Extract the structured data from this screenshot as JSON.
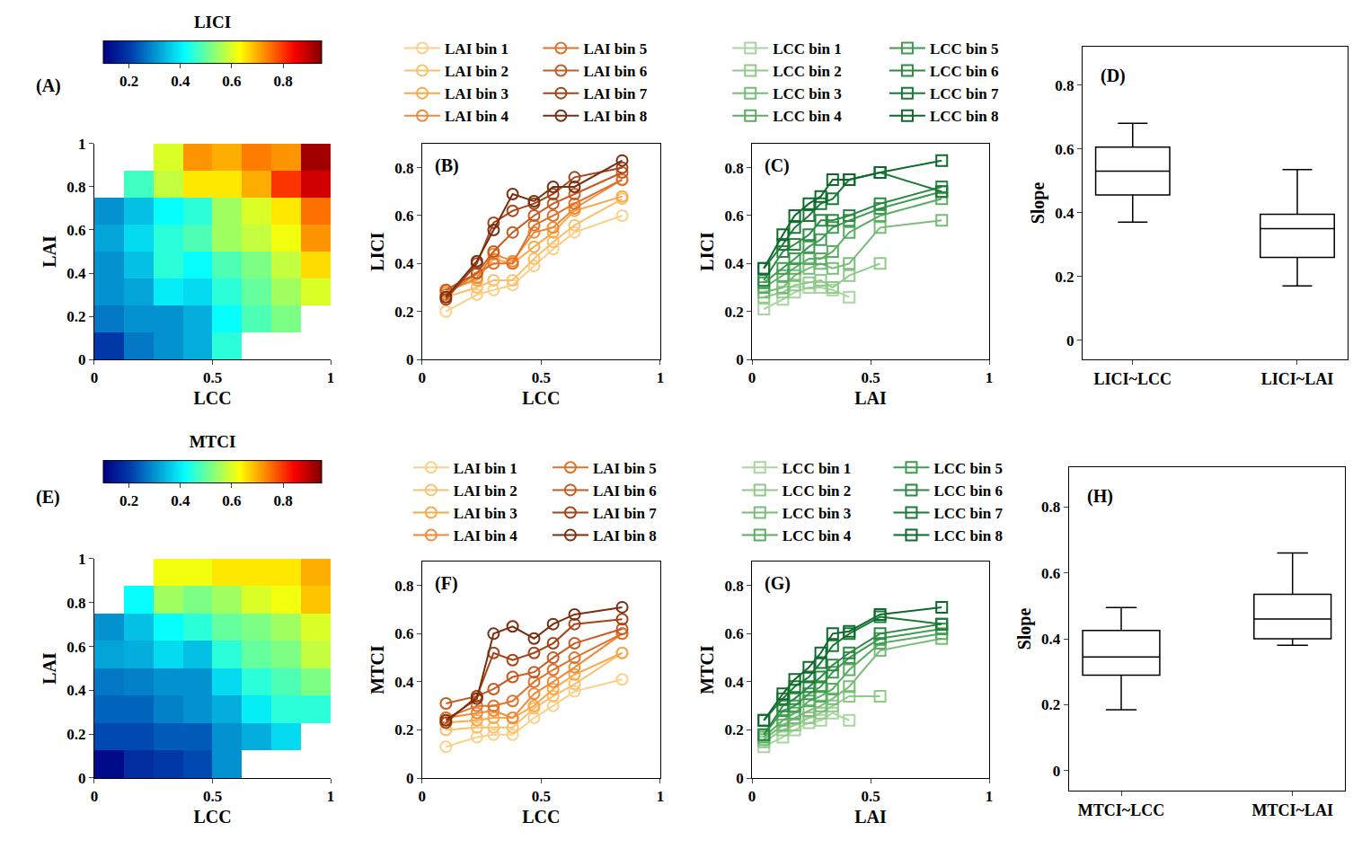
{
  "chart_data": [
    {
      "type": "heatmap",
      "panel": "(A)",
      "xlabel": "LCC",
      "ylabel": "LAI",
      "xlim": [
        0,
        1
      ],
      "ylim": [
        0,
        1
      ],
      "xticks": [
        0,
        0.5,
        1
      ],
      "yticks": [
        0,
        0.2,
        0.4,
        0.6,
        0.8,
        1
      ],
      "x_edges": [
        0,
        0.125,
        0.25,
        0.375,
        0.5,
        0.625,
        0.75,
        0.875,
        1
      ],
      "y_edges": [
        0,
        0.125,
        0.25,
        0.375,
        0.5,
        0.625,
        0.75,
        0.875,
        1
      ],
      "z": [
        [
          0.2,
          0.27,
          0.3,
          0.33,
          0.45,
          null,
          null,
          null
        ],
        [
          0.27,
          0.3,
          0.3,
          0.33,
          0.42,
          0.48,
          0.52,
          null
        ],
        [
          0.3,
          0.32,
          0.4,
          0.38,
          0.45,
          0.5,
          0.55,
          0.6
        ],
        [
          0.3,
          0.35,
          0.45,
          0.42,
          0.48,
          0.52,
          0.58,
          0.66
        ],
        [
          0.32,
          0.38,
          0.45,
          0.48,
          0.55,
          0.58,
          0.62,
          0.72
        ],
        [
          0.3,
          0.35,
          0.42,
          0.45,
          0.55,
          0.6,
          0.65,
          0.75
        ],
        [
          null,
          0.47,
          0.58,
          0.65,
          0.65,
          0.7,
          0.8,
          0.88
        ],
        [
          null,
          null,
          0.6,
          0.72,
          0.7,
          0.74,
          0.72,
          0.92
        ]
      ],
      "colorbar": {
        "title": "LICI",
        "range": [
          0.1,
          0.95
        ],
        "ticks": [
          0.2,
          0.4,
          0.6,
          0.8
        ]
      }
    },
    {
      "type": "line",
      "panel": "(B)",
      "xlabel": "LCC",
      "ylabel": "LICI",
      "marker": "circle",
      "xlim": [
        0,
        1
      ],
      "ylim": [
        0,
        0.9
      ],
      "xticks": [
        0,
        0.5,
        1
      ],
      "yticks": [
        0,
        0.2,
        0.4,
        0.6,
        0.8
      ],
      "x": [
        0.1,
        0.23,
        0.3,
        0.38,
        0.47,
        0.55,
        0.64,
        0.84
      ],
      "series": [
        {
          "name": "LAI bin 1",
          "color": "#fdd08a",
          "values": [
            0.2,
            0.27,
            0.29,
            0.31,
            0.39,
            0.46,
            0.53,
            0.6
          ]
        },
        {
          "name": "LAI bin 2",
          "color": "#fdc06a",
          "values": [
            0.26,
            0.3,
            0.33,
            0.33,
            0.42,
            0.49,
            0.56,
            0.67
          ]
        },
        {
          "name": "LAI bin 3",
          "color": "#f9a84a",
          "values": [
            0.29,
            0.33,
            0.42,
            0.4,
            0.47,
            0.53,
            0.62,
            0.68
          ]
        },
        {
          "name": "LAI bin 4",
          "color": "#f08a38",
          "values": [
            0.28,
            0.34,
            0.44,
            0.41,
            0.53,
            0.55,
            0.63,
            0.75
          ]
        },
        {
          "name": "LAI bin 5",
          "color": "#e0702a",
          "values": [
            0.27,
            0.36,
            0.4,
            0.4,
            0.56,
            0.6,
            0.65,
            0.75
          ]
        },
        {
          "name": "LAI bin 6",
          "color": "#c85a20",
          "values": [
            0.29,
            0.36,
            0.45,
            0.53,
            0.6,
            0.65,
            0.69,
            0.78
          ]
        },
        {
          "name": "LAI bin 7",
          "color": "#a54418",
          "values": [
            0.25,
            0.4,
            0.57,
            0.62,
            0.65,
            0.69,
            0.76,
            0.8
          ]
        },
        {
          "name": "LAI bin 8",
          "color": "#7a2e10",
          "values": [
            0.26,
            0.41,
            0.54,
            0.69,
            0.66,
            0.72,
            0.72,
            0.83
          ]
        }
      ]
    },
    {
      "type": "line",
      "panel": "(C)",
      "xlabel": "LAI",
      "ylabel": "LICI",
      "marker": "square",
      "xlim": [
        0,
        1
      ],
      "ylim": [
        0,
        0.9
      ],
      "xticks": [
        0,
        0.5,
        1
      ],
      "yticks": [
        0,
        0.2,
        0.4,
        0.6,
        0.8
      ],
      "x": [
        0.05,
        0.13,
        0.18,
        0.24,
        0.29,
        0.34,
        0.41,
        0.54,
        0.8
      ],
      "series": [
        {
          "name": "LCC bin 1",
          "color": "#a8d5a0",
          "values": [
            0.21,
            0.25,
            0.28,
            0.3,
            0.3,
            0.29,
            0.26,
            null,
            null
          ]
        },
        {
          "name": "LCC bin 2",
          "color": "#90c98a",
          "values": [
            0.26,
            0.28,
            0.31,
            0.32,
            0.33,
            0.3,
            0.35,
            0.4,
            null
          ]
        },
        {
          "name": "LCC bin 3",
          "color": "#78bc78",
          "values": [
            0.28,
            0.3,
            0.35,
            0.38,
            0.4,
            0.38,
            0.4,
            0.55,
            0.58
          ]
        },
        {
          "name": "LCC bin 4",
          "color": "#5aad62",
          "values": [
            0.3,
            0.35,
            0.38,
            0.42,
            0.42,
            0.45,
            0.53,
            0.6,
            0.67
          ]
        },
        {
          "name": "LCC bin 5",
          "color": "#3e9b50",
          "values": [
            0.32,
            0.38,
            0.42,
            0.47,
            0.5,
            0.55,
            0.58,
            0.63,
            0.7
          ]
        },
        {
          "name": "LCC bin 6",
          "color": "#2a8a42",
          "values": [
            0.33,
            0.45,
            0.48,
            0.52,
            0.58,
            0.58,
            0.6,
            0.65,
            0.72
          ]
        },
        {
          "name": "LCC bin 7",
          "color": "#1a7a36",
          "values": [
            0.38,
            0.48,
            0.55,
            0.6,
            0.65,
            0.67,
            0.75,
            0.78,
            0.7
          ]
        },
        {
          "name": "LCC bin 8",
          "color": "#0e6a2c",
          "values": [
            0.38,
            0.52,
            0.6,
            0.65,
            0.68,
            0.75,
            0.75,
            0.78,
            0.83
          ]
        }
      ]
    },
    {
      "type": "box",
      "panel": "(D)",
      "ylabel": "Slope",
      "color": "#000000",
      "ylim": [
        -0.06,
        0.92
      ],
      "yticks": [
        0,
        0.2,
        0.4,
        0.6,
        0.8
      ],
      "categories": [
        "LICI~LCC",
        "LICI~LAI"
      ],
      "boxes": {
        "lower": [
          0.37,
          0.17
        ],
        "q1": [
          0.455,
          0.26
        ],
        "median": [
          0.53,
          0.35
        ],
        "q3": [
          0.605,
          0.395
        ],
        "upper": [
          0.68,
          0.535
        ]
      }
    },
    {
      "type": "heatmap",
      "panel": "(E)",
      "xlabel": "LCC",
      "ylabel": "LAI",
      "xlim": [
        0,
        1
      ],
      "ylim": [
        0,
        1
      ],
      "xticks": [
        0,
        0.5,
        1
      ],
      "yticks": [
        0,
        0.2,
        0.4,
        0.6,
        0.8,
        1
      ],
      "x_edges": [
        0,
        0.125,
        0.25,
        0.375,
        0.5,
        0.625,
        0.75,
        0.875,
        1
      ],
      "y_edges": [
        0,
        0.125,
        0.25,
        0.375,
        0.5,
        0.625,
        0.75,
        0.875,
        1
      ],
      "z": [
        [
          0.12,
          0.18,
          0.2,
          0.22,
          0.3,
          null,
          null,
          null
        ],
        [
          0.22,
          0.22,
          0.24,
          0.24,
          0.3,
          0.33,
          0.38,
          null
        ],
        [
          0.25,
          0.25,
          0.28,
          0.3,
          0.33,
          0.4,
          0.45,
          0.45
        ],
        [
          0.27,
          0.28,
          0.3,
          0.3,
          0.38,
          0.45,
          0.48,
          0.52
        ],
        [
          0.32,
          0.33,
          0.38,
          0.35,
          0.45,
          0.5,
          0.52,
          0.58
        ],
        [
          0.3,
          0.35,
          0.42,
          0.45,
          0.5,
          0.52,
          0.55,
          0.6
        ],
        [
          null,
          0.42,
          0.55,
          0.52,
          0.55,
          0.6,
          0.62,
          0.68
        ],
        [
          null,
          null,
          0.62,
          0.62,
          0.65,
          0.65,
          0.65,
          0.7
        ]
      ],
      "colorbar": {
        "title": "MTCI",
        "range": [
          0.1,
          0.95
        ],
        "ticks": [
          0.2,
          0.4,
          0.6,
          0.8
        ]
      }
    },
    {
      "type": "line",
      "panel": "(F)",
      "xlabel": "LCC",
      "ylabel": "MTCI",
      "marker": "circle",
      "xlim": [
        0,
        1
      ],
      "ylim": [
        0,
        0.9
      ],
      "xticks": [
        0,
        0.5,
        1
      ],
      "yticks": [
        0,
        0.2,
        0.4,
        0.6,
        0.8
      ],
      "x": [
        0.1,
        0.23,
        0.3,
        0.38,
        0.47,
        0.55,
        0.64,
        0.84
      ],
      "series": [
        {
          "name": "LAI bin 1",
          "color": "#fdd08a",
          "values": [
            0.13,
            0.17,
            0.18,
            0.18,
            0.25,
            0.3,
            0.36,
            0.41
          ]
        },
        {
          "name": "LAI bin 2",
          "color": "#fdc06a",
          "values": [
            0.2,
            0.21,
            0.21,
            0.21,
            0.29,
            0.34,
            0.39,
            0.52
          ]
        },
        {
          "name": "LAI bin 3",
          "color": "#f9a84a",
          "values": [
            0.23,
            0.24,
            0.25,
            0.25,
            0.3,
            0.37,
            0.43,
            0.52
          ]
        },
        {
          "name": "LAI bin 4",
          "color": "#f08a38",
          "values": [
            0.25,
            0.27,
            0.28,
            0.25,
            0.35,
            0.4,
            0.46,
            0.6
          ]
        },
        {
          "name": "LAI bin 5",
          "color": "#e0702a",
          "values": [
            0.25,
            0.3,
            0.3,
            0.32,
            0.4,
            0.45,
            0.5,
            0.6
          ]
        },
        {
          "name": "LAI bin 6",
          "color": "#c85a20",
          "values": [
            0.31,
            0.34,
            0.37,
            0.42,
            0.44,
            0.5,
            0.56,
            0.62
          ]
        },
        {
          "name": "LAI bin 7",
          "color": "#a54418",
          "values": [
            0.23,
            0.34,
            0.52,
            0.49,
            0.52,
            0.56,
            0.64,
            0.66
          ]
        },
        {
          "name": "LAI bin 8",
          "color": "#7a2e10",
          "values": [
            0.24,
            0.33,
            0.6,
            0.63,
            0.58,
            0.64,
            0.68,
            0.71
          ]
        }
      ]
    },
    {
      "type": "line",
      "panel": "(G)",
      "xlabel": "LAI",
      "ylabel": "MTCI",
      "marker": "square",
      "xlim": [
        0,
        1
      ],
      "ylim": [
        0,
        0.9
      ],
      "xticks": [
        0,
        0.5,
        1
      ],
      "yticks": [
        0,
        0.2,
        0.4,
        0.6,
        0.8
      ],
      "x": [
        0.05,
        0.13,
        0.18,
        0.24,
        0.29,
        0.34,
        0.41,
        0.54,
        0.8
      ],
      "series": [
        {
          "name": "LCC bin 1",
          "color": "#a8d5a0",
          "values": [
            0.13,
            0.17,
            0.2,
            0.23,
            0.24,
            0.27,
            0.24,
            null,
            null
          ]
        },
        {
          "name": "LCC bin 2",
          "color": "#90c98a",
          "values": [
            0.15,
            0.2,
            0.22,
            0.25,
            0.27,
            0.3,
            0.34,
            0.34,
            null
          ]
        },
        {
          "name": "LCC bin 3",
          "color": "#78bc78",
          "values": [
            0.16,
            0.22,
            0.25,
            0.28,
            0.3,
            0.33,
            0.38,
            0.53,
            0.58
          ]
        },
        {
          "name": "LCC bin 4",
          "color": "#5aad62",
          "values": [
            0.17,
            0.24,
            0.27,
            0.32,
            0.34,
            0.37,
            0.45,
            0.56,
            0.6
          ]
        },
        {
          "name": "LCC bin 5",
          "color": "#3e9b50",
          "values": [
            0.18,
            0.28,
            0.3,
            0.35,
            0.38,
            0.44,
            0.5,
            0.58,
            0.62
          ]
        },
        {
          "name": "LCC bin 6",
          "color": "#2a8a42",
          "values": [
            0.18,
            0.3,
            0.33,
            0.38,
            0.42,
            0.47,
            0.52,
            0.6,
            0.64
          ]
        },
        {
          "name": "LCC bin 7",
          "color": "#1a7a36",
          "values": [
            0.24,
            0.33,
            0.38,
            0.42,
            0.48,
            0.55,
            0.6,
            0.67,
            0.64
          ]
        },
        {
          "name": "LCC bin 8",
          "color": "#0e6a2c",
          "values": [
            0.24,
            0.35,
            0.41,
            0.46,
            0.52,
            0.6,
            0.61,
            0.68,
            0.71
          ]
        }
      ]
    },
    {
      "type": "box",
      "panel": "(H)",
      "ylabel": "Slope",
      "color": "#000000",
      "ylim": [
        -0.06,
        0.92
      ],
      "yticks": [
        0,
        0.2,
        0.4,
        0.6,
        0.8
      ],
      "categories": [
        "MTCI~LCC",
        "MTCI~LAI"
      ],
      "boxes": {
        "lower": [
          0.185,
          0.38
        ],
        "q1": [
          0.29,
          0.4
        ],
        "median": [
          0.345,
          0.46
        ],
        "q3": [
          0.425,
          0.535
        ],
        "upper": [
          0.495,
          0.66
        ]
      }
    }
  ]
}
